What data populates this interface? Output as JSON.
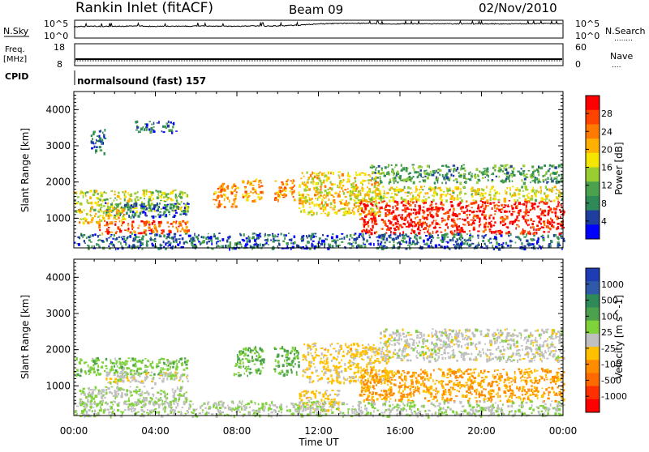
{
  "header": {
    "title": "Rankin Inlet (fitACF)",
    "beam": "Beam 09",
    "date": "02/Nov/2010"
  },
  "top_panels": {
    "nsky_label": "N.Sky",
    "nsky_ticks": [
      "10^5",
      "10^0"
    ],
    "nsearch_label": "N.Search",
    "nsearch_ticks": [
      "10^5",
      "10^0"
    ],
    "nsearch_legend": "........",
    "freq_label_line1": "Freq.",
    "freq_label_line2": "[MHz]",
    "freq_ticks": [
      "18",
      "8"
    ],
    "nave_label": "Nave",
    "nave_ticks": [
      "60",
      "0"
    ],
    "nave_legend": "....",
    "cpid_label": "CPID",
    "cpid_text": "normalsound (fast) 157"
  },
  "axes": {
    "ylabel": "Slant Range [km]",
    "xlabel": "Time UT",
    "x_ticks": [
      "00:00",
      "04:00",
      "08:00",
      "12:00",
      "16:00",
      "20:00",
      "00:00"
    ],
    "y_ticks": [
      "1000",
      "2000",
      "3000",
      "4000"
    ]
  },
  "power_colorbar": {
    "label": "Power [dB]",
    "ticks": [
      "28",
      "24",
      "20",
      "16",
      "12",
      "8",
      "4"
    ],
    "colors": [
      "#ff0000",
      "#ff4400",
      "#ff7a00",
      "#ffb000",
      "#f5e600",
      "#9acd32",
      "#4ca24c",
      "#2e8b57",
      "#1e3f9e",
      "#0000ff"
    ]
  },
  "velocity_colorbar": {
    "label": "Velocity [m s^-1]",
    "ticks": [
      "1000",
      "500",
      "100",
      "25",
      "-25",
      "-100",
      "-500",
      "-1000"
    ],
    "colors": [
      "#1e3cb4",
      "#2e5aa8",
      "#2e8b57",
      "#4ca24c",
      "#7fd23a",
      "#c0c0c0",
      "#ffc000",
      "#ff8c00",
      "#ff6a00",
      "#ff3000",
      "#ff0000"
    ]
  },
  "chart_data": [
    {
      "type": "heatmap",
      "title": "Power [dB]",
      "xlabel": "Time UT",
      "ylabel": "Slant Range [km]",
      "xlim": [
        0,
        24
      ],
      "ylim": [
        180,
        4500
      ],
      "zlim": [
        0,
        30
      ],
      "x_ticks": [
        "00:00",
        "04:00",
        "08:00",
        "12:00",
        "16:00",
        "20:00",
        "00:00"
      ],
      "y_ticks": [
        1000,
        2000,
        3000,
        4000
      ],
      "regions": [
        {
          "t": [
            0.0,
            5.6
          ],
          "r": [
            1200,
            1800
          ],
          "value": 14
        },
        {
          "t": [
            1.5,
            5.6
          ],
          "r": [
            1050,
            1450
          ],
          "value": 6
        },
        {
          "t": [
            1.2,
            5.6
          ],
          "r": [
            600,
            950
          ],
          "value": 24
        },
        {
          "t": [
            0.2,
            2.5
          ],
          "r": [
            900,
            1300
          ],
          "value": 18
        },
        {
          "t": [
            6.8,
            8.0
          ],
          "r": [
            1300,
            2000
          ],
          "value": 22
        },
        {
          "t": [
            8.2,
            9.2
          ],
          "r": [
            1500,
            2100
          ],
          "value": 20
        },
        {
          "t": [
            9.8,
            10.8
          ],
          "r": [
            1500,
            2100
          ],
          "value": 22
        },
        {
          "t": [
            11.0,
            15.0
          ],
          "r": [
            1100,
            2300
          ],
          "value": 18
        },
        {
          "t": [
            14.0,
            24.0
          ],
          "r": [
            600,
            1500
          ],
          "value": 28
        },
        {
          "t": [
            13.5,
            24.0
          ],
          "r": [
            1500,
            1900
          ],
          "value": 16
        },
        {
          "t": [
            14.5,
            24.0
          ],
          "r": [
            2000,
            2500
          ],
          "value": 10
        },
        {
          "t": [
            3.0,
            5.0
          ],
          "r": [
            3400,
            3700
          ],
          "value": 6
        },
        {
          "t": [
            0.8,
            1.5
          ],
          "r": [
            2800,
            3500
          ],
          "value": 6
        },
        {
          "t": [
            0.0,
            24.0
          ],
          "r": [
            180,
            600
          ],
          "value": 6
        }
      ]
    },
    {
      "type": "heatmap",
      "title": "Velocity [m s^-1]",
      "xlabel": "Time UT",
      "ylabel": "Slant Range [km]",
      "xlim": [
        0,
        24
      ],
      "ylim": [
        180,
        4500
      ],
      "zlim": [
        -1000,
        1000
      ],
      "x_ticks": [
        "00:00",
        "04:00",
        "08:00",
        "12:00",
        "16:00",
        "20:00",
        "00:00"
      ],
      "y_ticks": [
        1000,
        2000,
        3000,
        4000
      ],
      "regions": [
        {
          "t": [
            0.0,
            5.6
          ],
          "r": [
            1300,
            1800
          ],
          "value": 200
        },
        {
          "t": [
            1.5,
            5.6
          ],
          "r": [
            1100,
            1400
          ],
          "value": 0
        },
        {
          "t": [
            0.2,
            5.6
          ],
          "r": [
            500,
            1000
          ],
          "value": 80
        },
        {
          "t": [
            7.8,
            9.3
          ],
          "r": [
            1300,
            2100
          ],
          "value": 300
        },
        {
          "t": [
            9.8,
            11.0
          ],
          "r": [
            1300,
            2100
          ],
          "value": 300
        },
        {
          "t": [
            11.2,
            15.5
          ],
          "r": [
            1100,
            2200
          ],
          "value": -150
        },
        {
          "t": [
            14.0,
            24.0
          ],
          "r": [
            600,
            1500
          ],
          "value": -300
        },
        {
          "t": [
            15.0,
            24.0
          ],
          "r": [
            1700,
            2600
          ],
          "value": 0
        },
        {
          "t": [
            11.0,
            13.0
          ],
          "r": [
            300,
            900
          ],
          "value": -150
        },
        {
          "t": [
            0.0,
            24.0
          ],
          "r": [
            180,
            600
          ],
          "value": 80
        }
      ]
    },
    {
      "type": "line",
      "title": "N.Sky / N.Search",
      "xlim": [
        0,
        24
      ],
      "x": [
        0,
        1,
        2,
        3,
        4,
        5,
        6,
        7,
        8,
        9,
        10,
        11,
        12,
        13,
        14,
        15,
        16,
        17,
        18,
        19,
        20,
        21,
        22,
        23,
        24
      ],
      "series": [
        {
          "name": "N.Sky",
          "values": [
            3.2,
            3.3,
            3.3,
            3.4,
            3.3,
            3.3,
            3.4,
            3.3,
            3.3,
            3.4,
            3.4,
            3.6,
            4.0,
            4.1,
            4.2,
            4.0,
            4.0,
            4.0,
            4.0,
            4.0,
            4.0,
            4.0,
            4.0,
            4.1,
            4.0
          ]
        }
      ]
    },
    {
      "type": "line",
      "title": "Freq. [MHz]",
      "xlim": [
        0,
        24
      ],
      "ylim": [
        8,
        18
      ],
      "x": [
        0,
        24
      ],
      "series": [
        {
          "name": "Freq.",
          "values": [
            10.5,
            10.5
          ]
        }
      ]
    }
  ]
}
